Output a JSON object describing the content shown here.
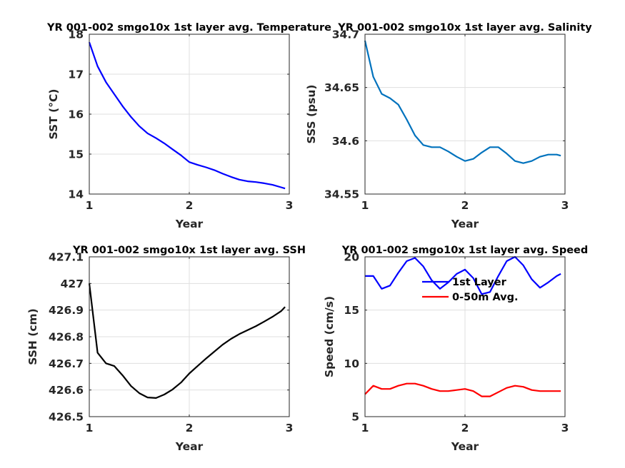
{
  "chart_data": [
    {
      "type": "line",
      "title": "YR 001-002 smgo10x 1st layer avg. Temperature",
      "xlabel": "Year",
      "ylabel": "SST (°C)",
      "xlim": [
        1,
        3
      ],
      "ylim": [
        14,
        18
      ],
      "xticks": [
        "1",
        "2",
        "3"
      ],
      "yticks": [
        "14",
        "15",
        "16",
        "17",
        "18"
      ],
      "grid": true,
      "series": [
        {
          "color": "#0000ff",
          "x": [
            1.0,
            1.083,
            1.167,
            1.25,
            1.333,
            1.417,
            1.5,
            1.583,
            1.667,
            1.75,
            1.833,
            1.917,
            2.0,
            2.083,
            2.167,
            2.25,
            2.333,
            2.417,
            2.5,
            2.583,
            2.667,
            2.75,
            2.833,
            2.917,
            2.958
          ],
          "y": [
            17.8,
            17.2,
            16.8,
            16.5,
            16.2,
            15.93,
            15.7,
            15.52,
            15.4,
            15.27,
            15.12,
            14.97,
            14.8,
            14.73,
            14.67,
            14.6,
            14.51,
            14.43,
            14.36,
            14.32,
            14.3,
            14.27,
            14.23,
            14.17,
            14.14
          ]
        }
      ]
    },
    {
      "type": "line",
      "title": "YR 001-002 smgo10x 1st layer avg. Salinity",
      "xlabel": "Year",
      "ylabel": "SSS (psu)",
      "xlim": [
        1,
        3
      ],
      "ylim": [
        34.55,
        34.7
      ],
      "xticks": [
        "1",
        "2",
        "3"
      ],
      "yticks": [
        "34.55",
        "34.6",
        "34.65",
        "34.7"
      ],
      "grid": true,
      "series": [
        {
          "color": "#0072bd",
          "x": [
            1.0,
            1.083,
            1.167,
            1.25,
            1.333,
            1.417,
            1.5,
            1.583,
            1.667,
            1.75,
            1.833,
            1.917,
            2.0,
            2.083,
            2.167,
            2.25,
            2.333,
            2.417,
            2.5,
            2.583,
            2.667,
            2.75,
            2.833,
            2.917,
            2.958
          ],
          "y": [
            34.694,
            34.66,
            34.644,
            34.64,
            34.634,
            34.62,
            34.605,
            34.596,
            34.594,
            34.594,
            34.59,
            34.585,
            34.581,
            34.583,
            34.589,
            34.594,
            34.594,
            34.588,
            34.581,
            34.579,
            34.581,
            34.585,
            34.587,
            34.587,
            34.586
          ]
        }
      ]
    },
    {
      "type": "line",
      "title": "YR 001-002 smgo10x 1st layer avg. SSH",
      "xlabel": "Year",
      "ylabel": "SSH (cm)",
      "xlim": [
        1,
        3
      ],
      "ylim": [
        426.5,
        427.1
      ],
      "xticks": [
        "1",
        "2",
        "3"
      ],
      "yticks": [
        "426.5",
        "426.6",
        "426.7",
        "426.8",
        "426.9",
        "427",
        "427.1"
      ],
      "grid": true,
      "series": [
        {
          "color": "#000000",
          "x": [
            1.0,
            1.083,
            1.167,
            1.25,
            1.333,
            1.417,
            1.5,
            1.583,
            1.667,
            1.75,
            1.833,
            1.917,
            2.0,
            2.083,
            2.167,
            2.25,
            2.333,
            2.417,
            2.5,
            2.583,
            2.667,
            2.75,
            2.833,
            2.917,
            2.958
          ],
          "y": [
            427.0,
            426.74,
            426.7,
            426.69,
            426.655,
            426.615,
            426.588,
            426.572,
            426.57,
            426.583,
            426.602,
            426.628,
            426.662,
            426.69,
            426.718,
            426.744,
            426.77,
            426.792,
            426.81,
            426.825,
            426.84,
            426.857,
            426.875,
            426.896,
            426.912
          ]
        }
      ]
    },
    {
      "type": "line",
      "title": "YR 001-002 smgo10x 1st layer avg. Speed",
      "xlabel": "Year",
      "ylabel": "Speed (cm/s)",
      "xlim": [
        1,
        3
      ],
      "ylim": [
        5,
        20
      ],
      "xticks": [
        "1",
        "2",
        "3"
      ],
      "yticks": [
        "5",
        "10",
        "15",
        "20"
      ],
      "grid": true,
      "legend": "top-right",
      "series": [
        {
          "name": "1st Layer",
          "color": "#0000ff",
          "x": [
            1.0,
            1.083,
            1.167,
            1.25,
            1.333,
            1.417,
            1.5,
            1.583,
            1.667,
            1.75,
            1.833,
            1.917,
            2.0,
            2.083,
            2.167,
            2.25,
            2.333,
            2.417,
            2.5,
            2.583,
            2.667,
            2.75,
            2.833,
            2.917,
            2.958
          ],
          "y": [
            18.2,
            18.2,
            17.0,
            17.3,
            18.5,
            19.6,
            19.9,
            19.1,
            17.8,
            17.0,
            17.6,
            18.4,
            18.8,
            18.0,
            16.5,
            16.7,
            18.2,
            19.6,
            20.0,
            19.2,
            17.9,
            17.1,
            17.6,
            18.2,
            18.4
          ]
        },
        {
          "name": "0-50m Avg.",
          "color": "#ff0000",
          "x": [
            1.0,
            1.083,
            1.167,
            1.25,
            1.333,
            1.417,
            1.5,
            1.583,
            1.667,
            1.75,
            1.833,
            1.917,
            2.0,
            2.083,
            2.167,
            2.25,
            2.333,
            2.417,
            2.5,
            2.583,
            2.667,
            2.75,
            2.833,
            2.917,
            2.958
          ],
          "y": [
            7.1,
            7.9,
            7.6,
            7.6,
            7.9,
            8.1,
            8.1,
            7.9,
            7.6,
            7.4,
            7.4,
            7.5,
            7.6,
            7.4,
            6.9,
            6.9,
            7.3,
            7.7,
            7.9,
            7.8,
            7.5,
            7.4,
            7.4,
            7.4,
            7.4
          ]
        }
      ]
    }
  ]
}
